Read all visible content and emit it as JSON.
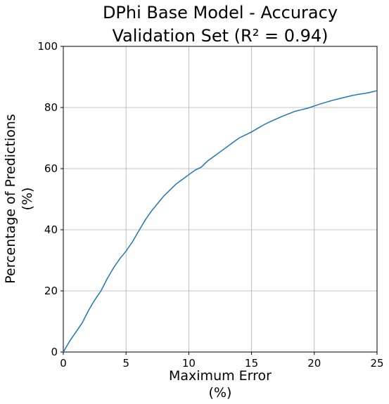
{
  "chart_data": {
    "type": "line",
    "title_line1": "DPhi Base Model - Accuracy",
    "title_line2": "Validation Set (R² = 0.94)",
    "xlabel_line1": "Maximum Error",
    "xlabel_line2": "(%)",
    "ylabel_line1": "Percentage of Predictions",
    "ylabel_line2": "(%)",
    "xlim": [
      0,
      25
    ],
    "ylim": [
      0,
      100
    ],
    "xticks": [
      0,
      5,
      10,
      15,
      20,
      25
    ],
    "yticks": [
      0,
      20,
      40,
      60,
      80,
      100
    ],
    "grid": true,
    "series": [
      {
        "color": "#1f77b4",
        "x": [
          0,
          0.5,
          1,
          1.5,
          2,
          2.5,
          3,
          3.5,
          4,
          4.5,
          5,
          5.5,
          6,
          6.5,
          7,
          7.5,
          8,
          8.5,
          9,
          9.5,
          10,
          10.5,
          11,
          11.5,
          12,
          12.5,
          13,
          13.5,
          14,
          14.5,
          15,
          15.5,
          16,
          16.5,
          17,
          17.5,
          18,
          18.5,
          19,
          19.5,
          20,
          20.5,
          21,
          21.5,
          22,
          22.5,
          23,
          23.5,
          24,
          24.5,
          25
        ],
        "y": [
          0,
          3.5,
          6.5,
          9.5,
          13.5,
          17,
          20,
          24,
          27.5,
          30.5,
          33,
          36,
          39.5,
          43,
          46,
          48.5,
          51,
          53,
          55,
          56.5,
          58,
          59.5,
          60.5,
          62.5,
          64,
          65.5,
          67,
          68.5,
          70,
          71,
          72,
          73.2,
          74.4,
          75.4,
          76.3,
          77.2,
          78,
          78.8,
          79.3,
          79.8,
          80.5,
          81.2,
          81.8,
          82.4,
          82.9,
          83.4,
          83.9,
          84.3,
          84.6,
          85,
          85.5
        ]
      }
    ]
  }
}
